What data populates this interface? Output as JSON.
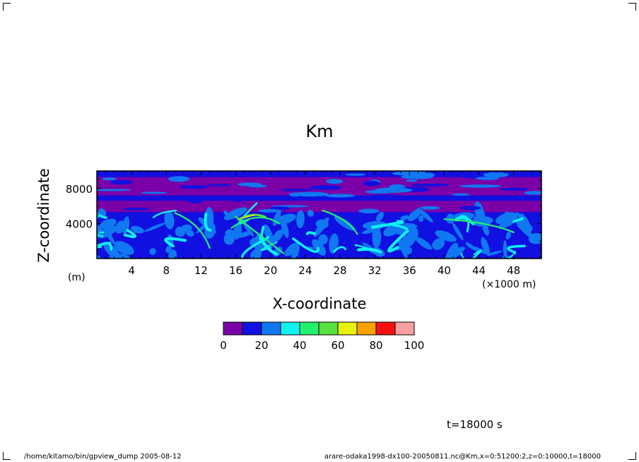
{
  "chart_data": {
    "type": "heatmap",
    "title": "Km",
    "xlabel": "X-coordinate",
    "ylabel": "Z-coordinate",
    "x_unit": "(×1000 m)",
    "y_unit": "(m)",
    "xlim": [
      0,
      51.2
    ],
    "ylim": [
      0,
      10000
    ],
    "x_ticks": [
      "4",
      "8",
      "12",
      "16",
      "20",
      "24",
      "28",
      "32",
      "36",
      "40",
      "44",
      "48"
    ],
    "y_ticks": [
      "4000",
      "8000"
    ],
    "colorbar": {
      "levels": [
        0,
        10,
        20,
        30,
        40,
        50,
        60,
        70,
        80,
        90,
        100
      ],
      "tick_labels": [
        "0",
        "20",
        "40",
        "60",
        "80",
        "100"
      ],
      "colors": [
        "#7a00a8",
        "#1010e0",
        "#1078f0",
        "#10f0f0",
        "#20f070",
        "#58e040",
        "#e8f010",
        "#f8a000",
        "#f81010",
        "#f8a0a0"
      ]
    },
    "time_label": "t=18000 s"
  },
  "footer": {
    "left": "/home/kitamo/bin/gpview_dump  2005-08-12",
    "right": "arare-odaka1998-dx100-20050811.nc@Km,x=0:51200:2,z=0:10000,t=18000"
  }
}
